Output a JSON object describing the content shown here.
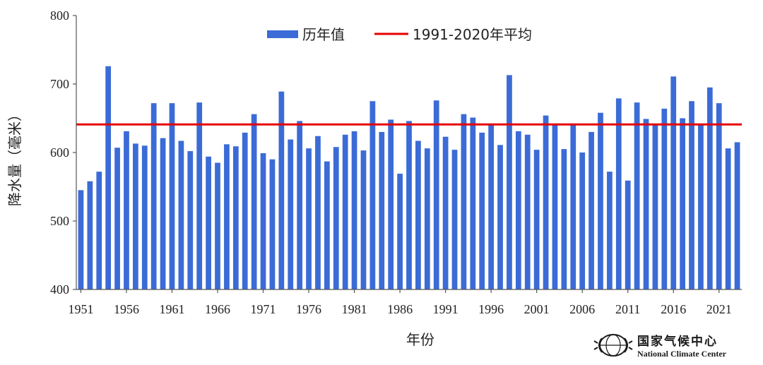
{
  "chart_data": {
    "type": "bar",
    "xlabel": "年份",
    "ylabel": "降水量（毫米）",
    "ylim": [
      400,
      800
    ],
    "yticks": [
      400,
      500,
      600,
      700,
      800
    ],
    "xticks": [
      "1951",
      "1956",
      "1961",
      "1966",
      "1971",
      "1976",
      "1981",
      "1986",
      "1991",
      "1996",
      "2001",
      "2006",
      "2011",
      "2016",
      "2021"
    ],
    "grid": false,
    "legend_position": "top-center",
    "series": [
      {
        "name": "历年值",
        "kind": "bar",
        "color": "#3b6bd6",
        "x": [
          1951,
          1952,
          1953,
          1954,
          1955,
          1956,
          1957,
          1958,
          1959,
          1960,
          1961,
          1962,
          1963,
          1964,
          1965,
          1966,
          1967,
          1968,
          1969,
          1970,
          1971,
          1972,
          1973,
          1974,
          1975,
          1976,
          1977,
          1978,
          1979,
          1980,
          1981,
          1982,
          1983,
          1984,
          1985,
          1986,
          1987,
          1988,
          1989,
          1990,
          1991,
          1992,
          1993,
          1994,
          1995,
          1996,
          1997,
          1998,
          1999,
          2000,
          2001,
          2002,
          2003,
          2004,
          2005,
          2006,
          2007,
          2008,
          2009,
          2010,
          2011,
          2012,
          2013,
          2014,
          2015,
          2016,
          2017,
          2018,
          2019,
          2020,
          2021,
          2022,
          2023
        ],
        "values": [
          545,
          558,
          572,
          726,
          607,
          631,
          613,
          610,
          672,
          621,
          672,
          617,
          602,
          673,
          594,
          585,
          612,
          609,
          629,
          656,
          599,
          590,
          689,
          619,
          646,
          606,
          624,
          587,
          608,
          626,
          631,
          603,
          675,
          630,
          648,
          569,
          646,
          617,
          606,
          676,
          623,
          604,
          656,
          651,
          629,
          640,
          611,
          713,
          631,
          626,
          604,
          654,
          640,
          605,
          640,
          600,
          630,
          658,
          572,
          679,
          559,
          673,
          649,
          640,
          664,
          711,
          650,
          675,
          640,
          695,
          672,
          606,
          615
        ]
      },
      {
        "name": "1991-2020年平均",
        "kind": "line",
        "color": "#e60000",
        "value": 641
      }
    ]
  },
  "logo": {
    "name_cn": "国家气候中心",
    "name_en": "National Climate Center"
  }
}
